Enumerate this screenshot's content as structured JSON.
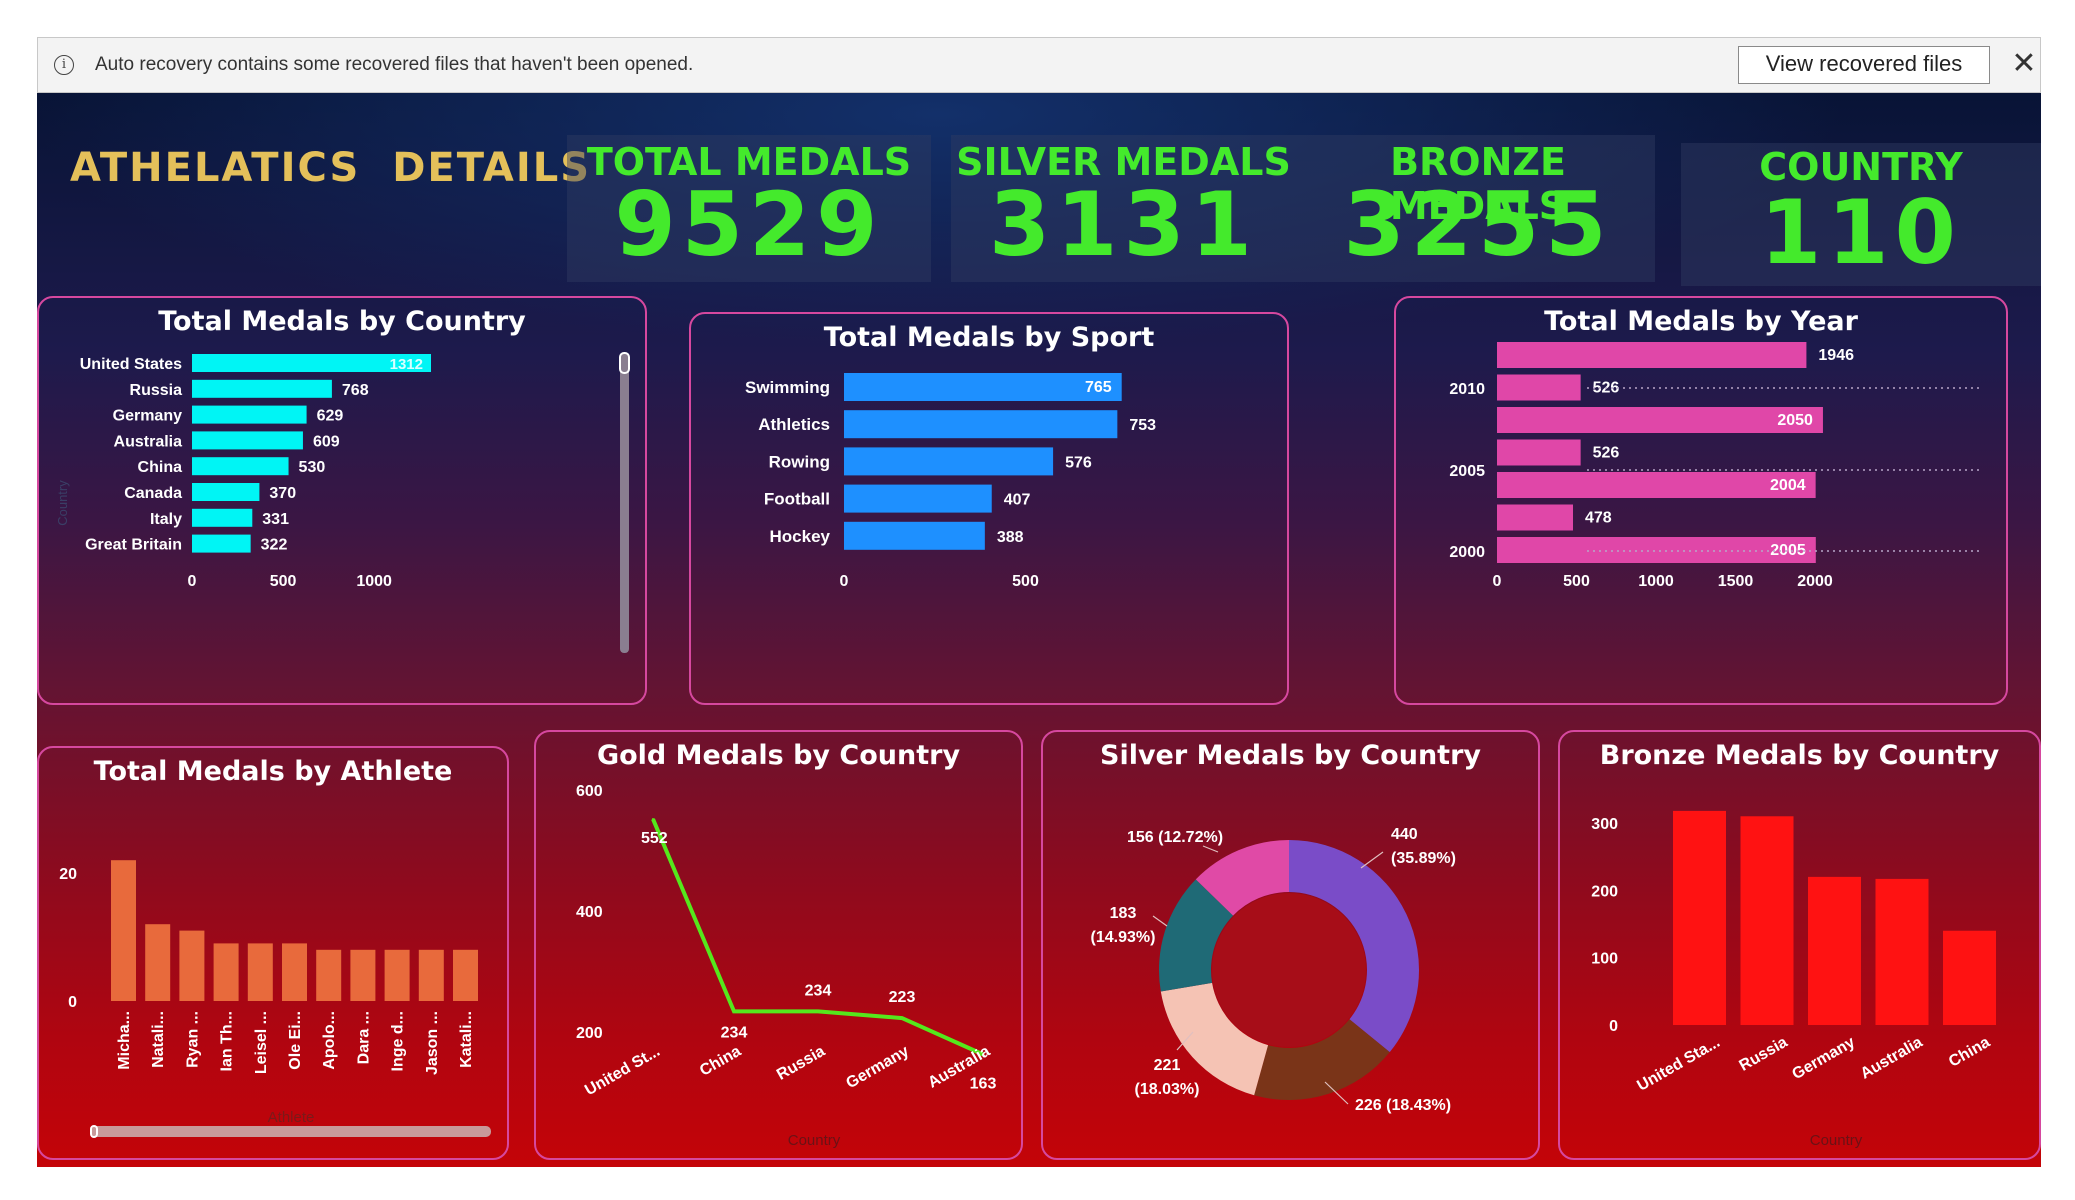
{
  "recovery_bar": {
    "info_icon": "info-icon",
    "message": "Auto recovery contains some recovered files that haven't been opened.",
    "button_label": "View recovered files",
    "close_icon": "close-icon",
    "close_glyph": "✕"
  },
  "dashboard": {
    "title": "ATHELATICS  DETAILS",
    "kpis": {
      "total": {
        "label": "TOTAL MEDALS",
        "value": "9529"
      },
      "silver": {
        "label": "SILVER MEDALS",
        "value": "3131"
      },
      "bronze": {
        "label": "BRONZE MEDALS",
        "value": "3255"
      },
      "country": {
        "label": "COUNTRY",
        "value": "110"
      }
    },
    "colors": {
      "accent_green": "#44ea2c",
      "title_gold": "#e4c05a",
      "panel_border": "#d6489f"
    }
  },
  "chart_data": [
    {
      "type": "bar",
      "orientation": "horizontal",
      "title": "Total Medals by Country",
      "ylabel": "Country",
      "categories": [
        "United States",
        "Russia",
        "Germany",
        "Australia",
        "China",
        "Canada",
        "Italy",
        "Great Britain"
      ],
      "values": [
        1312,
        768,
        629,
        609,
        530,
        370,
        331,
        322
      ],
      "xticks": [
        "0",
        "500",
        "1000"
      ],
      "xlim": [
        0,
        1400
      ],
      "color": "#00f5f5"
    },
    {
      "type": "bar",
      "orientation": "horizontal",
      "title": "Total Medals by Sport",
      "categories": [
        "Swimming",
        "Athletics",
        "Rowing",
        "Football",
        "Hockey"
      ],
      "values": [
        765,
        753,
        576,
        407,
        388
      ],
      "xticks": [
        "0",
        "500"
      ],
      "xlim": [
        0,
        800
      ],
      "color": "#1e90ff"
    },
    {
      "type": "bar",
      "orientation": "horizontal",
      "title": "Total Medals by Year",
      "year_labels": [
        "2010",
        "2005",
        "2000"
      ],
      "values": [
        1946,
        526,
        2050,
        526,
        2004,
        478,
        2005
      ],
      "xticks": [
        "0",
        "500",
        "1000",
        "1500",
        "2000"
      ],
      "xlim": [
        0,
        2100
      ],
      "color": "#e047a8"
    },
    {
      "type": "bar",
      "title": "Total Medals by Athlete",
      "xlabel": "Athlete",
      "categories": [
        "Micha...",
        "Natali...",
        "Ryan ...",
        "Ian Th...",
        "Leisel ...",
        "Ole Ei...",
        "Apolo...",
        "Dara ...",
        "Inge d...",
        "Jason ...",
        "Katali..."
      ],
      "values": [
        22,
        12,
        11,
        9,
        9,
        9,
        8,
        8,
        8,
        8,
        8
      ],
      "yticks": [
        "0",
        "20"
      ],
      "ylim": [
        0,
        25
      ],
      "color": "#e86a3c"
    },
    {
      "type": "line",
      "title": "Gold Medals by Country",
      "xlabel": "Country",
      "categories": [
        "United St...",
        "China",
        "Russia",
        "Germany",
        "Australia"
      ],
      "values": [
        552,
        234,
        234,
        223,
        163
      ],
      "yticks": [
        "200",
        "400",
        "600"
      ],
      "ylim": [
        100,
        600
      ],
      "color": "#55e81c"
    },
    {
      "type": "pie",
      "style": "donut",
      "title": "Silver Medals by Country",
      "slices": [
        {
          "label": "440",
          "pct": "(35.89%)",
          "value": 440,
          "color": "#7a4cc8"
        },
        {
          "label": "226 (18.43%)",
          "pct": "",
          "value": 226,
          "color": "#7a3418"
        },
        {
          "label": "221",
          "pct": "(18.03%)",
          "value": 221,
          "color": "#f5c3b4"
        },
        {
          "label": "183",
          "pct": "(14.93%)",
          "value": 183,
          "color": "#1f6a76"
        },
        {
          "label": "156 (12.72%)",
          "pct": "",
          "value": 156,
          "color": "#e04aa6"
        }
      ]
    },
    {
      "type": "bar",
      "title": "Bronze Medals by Country",
      "xlabel": "Country",
      "categories": [
        "United Sta...",
        "Russia",
        "Germany",
        "Australia",
        "China"
      ],
      "values": [
        318,
        310,
        220,
        217,
        140
      ],
      "yticks": [
        "0",
        "100",
        "200",
        "300"
      ],
      "ylim": [
        0,
        320
      ],
      "color": "#ff1212"
    }
  ]
}
